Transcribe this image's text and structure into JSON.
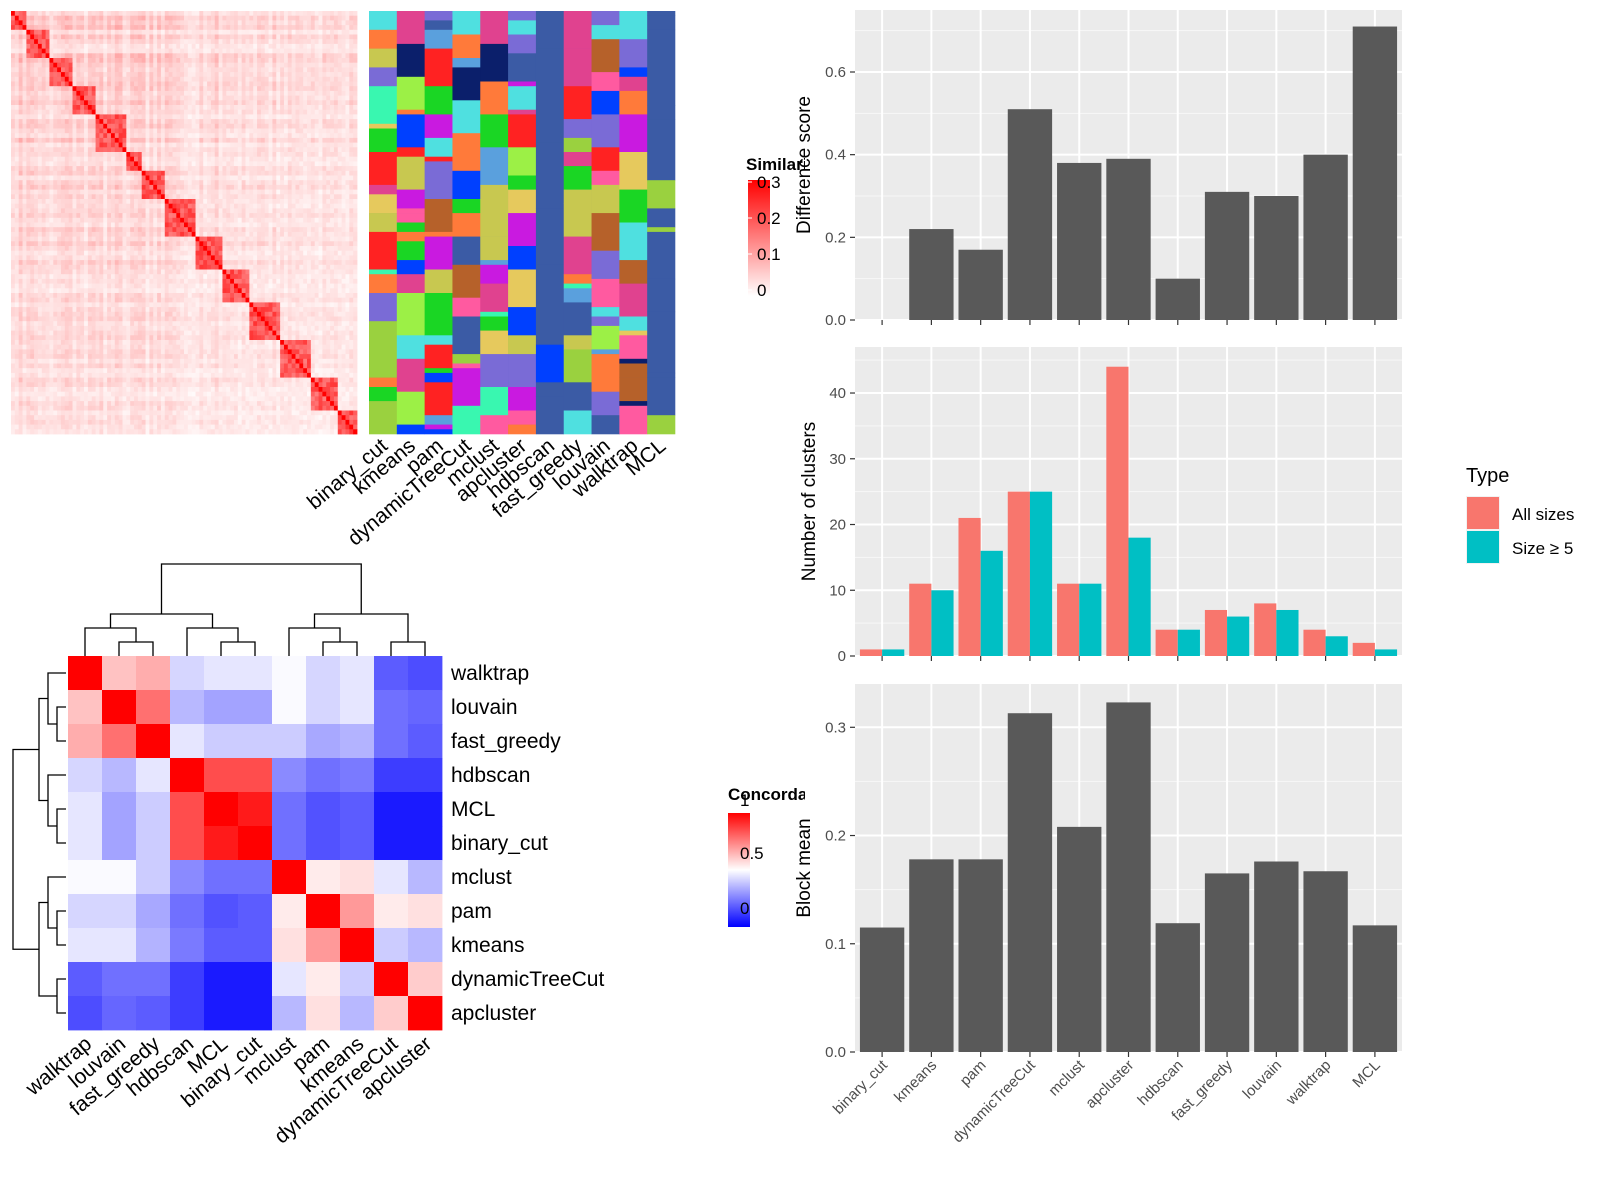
{
  "methods_order": [
    "binary_cut",
    "kmeans",
    "pam",
    "dynamicTreeCut",
    "mclust",
    "apcluster",
    "hdbscan",
    "fast_greedy",
    "louvain",
    "walktrap",
    "MCL"
  ],
  "similarity_legend": {
    "title": "Similarity",
    "ticks": [
      "0.3",
      "0.2",
      "0.1",
      "0"
    ],
    "high_color": "#ff0000",
    "low_color": "#ffffff"
  },
  "concordance_legend": {
    "title": "Concordance",
    "ticks": [
      "1",
      "0.5",
      "0"
    ],
    "high_color": "#ff0000",
    "mid_color": "#ffffff",
    "low_color": "#0000ff"
  },
  "type_legend": {
    "title": "Type",
    "entries": [
      {
        "label": "All sizes",
        "color": "#f8766d"
      },
      {
        "label": "Size ≥ 5",
        "color": "#00bfc4"
      }
    ]
  },
  "chart_data": [
    {
      "type": "bar",
      "ylabel": "Difference score",
      "categories": [
        "binary_cut",
        "kmeans",
        "pam",
        "dynamicTreeCut",
        "mclust",
        "apcluster",
        "hdbscan",
        "fast_greedy",
        "louvain",
        "walktrap",
        "MCL"
      ],
      "values": [
        0,
        0.22,
        0.17,
        0.51,
        0.38,
        0.39,
        0.1,
        0.31,
        0.3,
        0.4,
        0.71
      ],
      "yticks": [
        "0.0",
        "0.2",
        "0.4",
        "0.6"
      ],
      "ylim": [
        0,
        0.75
      ]
    },
    {
      "type": "bar",
      "ylabel": "Number of clusters",
      "categories": [
        "binary_cut",
        "kmeans",
        "pam",
        "dynamicTreeCut",
        "mclust",
        "apcluster",
        "hdbscan",
        "fast_greedy",
        "louvain",
        "walktrap",
        "MCL"
      ],
      "series": [
        {
          "name": "All sizes",
          "values": [
            1,
            11,
            21,
            25,
            11,
            44,
            4,
            7,
            8,
            4,
            2
          ]
        },
        {
          "name": "Size ≥ 5",
          "values": [
            1,
            10,
            16,
            25,
            11,
            18,
            4,
            6,
            7,
            3,
            1
          ]
        }
      ],
      "yticks": [
        "0",
        "10",
        "20",
        "30",
        "40"
      ],
      "ylim": [
        0,
        47
      ]
    },
    {
      "type": "bar",
      "ylabel": "Block mean",
      "categories": [
        "binary_cut",
        "kmeans",
        "pam",
        "dynamicTreeCut",
        "mclust",
        "apcluster",
        "hdbscan",
        "fast_greedy",
        "louvain",
        "walktrap",
        "MCL"
      ],
      "values": [
        0.115,
        0.178,
        0.178,
        0.313,
        0.208,
        0.323,
        0.119,
        0.165,
        0.176,
        0.167,
        0.117
      ],
      "yticks": [
        "0.0",
        "0.1",
        "0.2",
        "0.3"
      ],
      "ylim": [
        0,
        0.34
      ]
    },
    {
      "type": "heatmap",
      "title": "",
      "labels": [
        "walktrap",
        "louvain",
        "fast_greedy",
        "hdbscan",
        "MCL",
        "binary_cut",
        "mclust",
        "pam",
        "kmeans",
        "dynamicTreeCut",
        "apcluster"
      ],
      "values": [
        [
          1.0,
          0.62,
          0.66,
          0.42,
          0.45,
          0.45,
          0.49,
          0.42,
          0.45,
          0.18,
          0.15
        ],
        [
          0.62,
          1.0,
          0.78,
          0.36,
          0.32,
          0.32,
          0.49,
          0.42,
          0.45,
          0.22,
          0.2
        ],
        [
          0.66,
          0.78,
          1.0,
          0.45,
          0.4,
          0.4,
          0.4,
          0.33,
          0.35,
          0.22,
          0.18
        ],
        [
          0.42,
          0.36,
          0.45,
          1.0,
          0.85,
          0.85,
          0.27,
          0.22,
          0.24,
          0.12,
          0.12
        ],
        [
          0.45,
          0.32,
          0.4,
          0.85,
          1.0,
          0.95,
          0.22,
          0.16,
          0.18,
          0.05,
          0.05
        ],
        [
          0.45,
          0.32,
          0.4,
          0.85,
          0.95,
          1.0,
          0.22,
          0.16,
          0.18,
          0.05,
          0.05
        ],
        [
          0.49,
          0.49,
          0.4,
          0.27,
          0.22,
          0.22,
          1.0,
          0.54,
          0.56,
          0.45,
          0.36
        ],
        [
          0.42,
          0.42,
          0.33,
          0.22,
          0.16,
          0.18,
          0.54,
          1.0,
          0.7,
          0.54,
          0.56
        ],
        [
          0.45,
          0.45,
          0.35,
          0.24,
          0.18,
          0.18,
          0.56,
          0.7,
          1.0,
          0.4,
          0.36
        ],
        [
          0.18,
          0.22,
          0.22,
          0.12,
          0.05,
          0.05,
          0.45,
          0.54,
          0.4,
          1.0,
          0.6
        ],
        [
          0.15,
          0.2,
          0.18,
          0.12,
          0.05,
          0.05,
          0.36,
          0.56,
          0.36,
          0.6,
          1.0
        ]
      ]
    },
    {
      "type": "heatmap",
      "title": "",
      "description_columns": [
        "binary_cut",
        "kmeans",
        "pam",
        "dynamicTreeCut",
        "mclust",
        "apcluster",
        "hdbscan",
        "fast_greedy",
        "louvain",
        "walktrap",
        "MCL"
      ],
      "palette": [
        "#3b5ba5",
        "#e6c95d",
        "#9ad13f",
        "#1ad624",
        "#39f7b0",
        "#e0428f",
        "#0b1f6b",
        "#0040ff",
        "#b6612a",
        "#ff2222",
        "#c91ae0",
        "#7a6bd6",
        "#ff7a3a",
        "#5aa0dd",
        "#9cf046",
        "#c8c850",
        "#ff5aa0",
        "#4fe0e0"
      ]
    }
  ]
}
